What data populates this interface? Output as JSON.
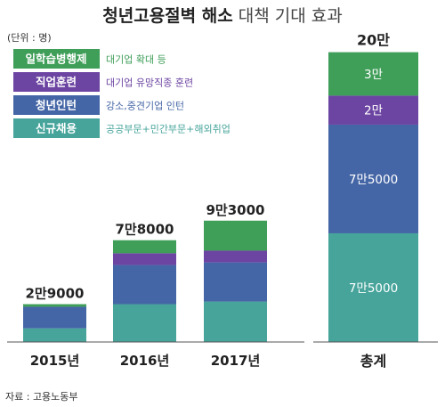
{
  "title": {
    "bold": "청년고용절벽 해소",
    "light": " 대책 기대 효과"
  },
  "unit_label": "(단위 : 명)",
  "source": "자료 : 고용노동부",
  "colors": {
    "일학습병행제": "#3f9e58",
    "직업훈련": "#6c44a2",
    "청년인턴": "#4566a6",
    "신규채용": "#46a49b"
  },
  "legend": [
    {
      "name": "일학습병행제",
      "desc": "대기업 확대 등"
    },
    {
      "name": "직업훈련",
      "desc": "대기업 유망직종 훈련"
    },
    {
      "name": "청년인턴",
      "desc": "강소,중견기업 인턴"
    },
    {
      "name": "신규채용",
      "desc": "공공부문+민간부문+해외취업"
    }
  ],
  "chart_data": [
    {
      "type": "bar",
      "stacked": true,
      "categories": [
        "2015년",
        "2016년",
        "2017년"
      ],
      "total_labels": [
        "2만9000",
        "7만8000",
        "9만3000"
      ],
      "totals": [
        29000,
        78000,
        93000
      ],
      "series": [
        {
          "name": "신규채용",
          "values": [
            10500,
            29000,
            31000
          ]
        },
        {
          "name": "청년인턴",
          "values": [
            16500,
            30000,
            30000
          ]
        },
        {
          "name": "직업훈련",
          "values": [
            0,
            9000,
            9000
          ]
        },
        {
          "name": "일학습병행제",
          "values": [
            2000,
            10000,
            23000
          ]
        }
      ],
      "ylim": [
        0,
        108000
      ]
    },
    {
      "type": "bar",
      "stacked": true,
      "categories": [
        "총계"
      ],
      "total_labels": [
        "20만"
      ],
      "totals": [
        200000
      ],
      "series": [
        {
          "name": "신규채용",
          "values": [
            75000
          ],
          "label": "7만5000"
        },
        {
          "name": "청년인턴",
          "values": [
            75000
          ],
          "label": "7만5000"
        },
        {
          "name": "직업훈련",
          "values": [
            20000
          ],
          "label": "2만"
        },
        {
          "name": "일학습병행제",
          "values": [
            30000
          ],
          "label": "3만"
        }
      ],
      "ylim": [
        0,
        200000
      ]
    }
  ]
}
